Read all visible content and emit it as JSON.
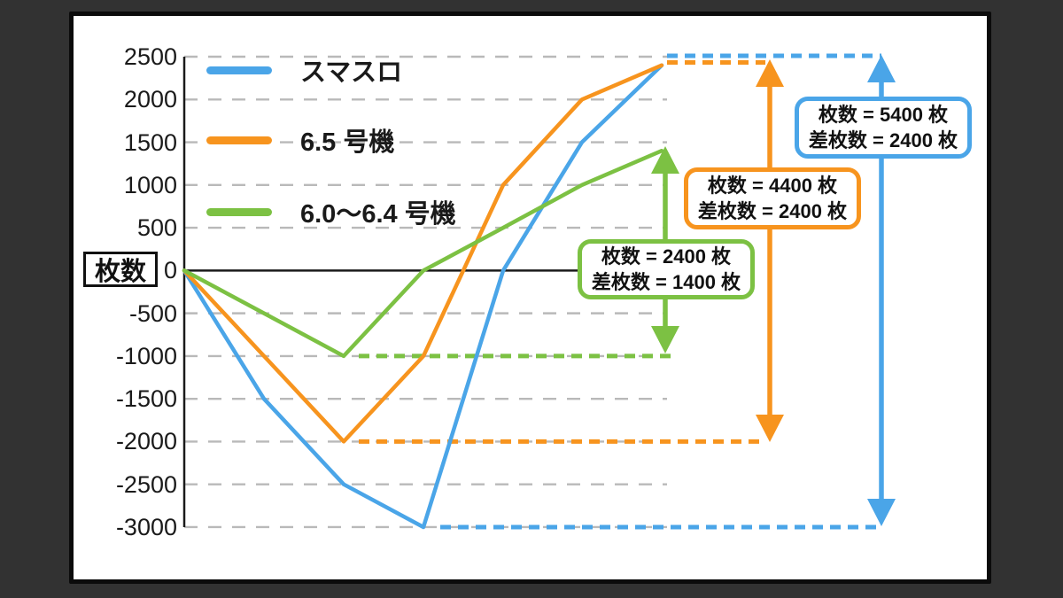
{
  "colors": {
    "blue": "#4aa5e8",
    "orange": "#f7941e",
    "green": "#7cc143",
    "grid": "#b9b9b9",
    "axis": "#1a1a1a",
    "panel_bg": "#ffffff",
    "page_bg": "#323232"
  },
  "chart_data": {
    "type": "line",
    "title": "",
    "ylabel": "枚数",
    "ylim": [
      -3000,
      2500
    ],
    "ytick_step": 500,
    "yticks": [
      2500,
      2000,
      1500,
      1000,
      500,
      0,
      -500,
      -1000,
      -1500,
      -2000,
      -2500,
      -3000
    ],
    "x_tick_labels": [],
    "grid": "horizontal dashed",
    "legend_position": "top-left inside plot",
    "series": [
      {
        "name": "スマスロ",
        "color": "#4aa5e8",
        "values": [
          0,
          -1500,
          -2500,
          -3000,
          0,
          1500,
          2400
        ]
      },
      {
        "name": "6.5 号機",
        "color": "#f7941e",
        "values": [
          0,
          -1000,
          -2000,
          -1000,
          1000,
          2000,
          2400
        ]
      },
      {
        "name": "6.0〜6.4 号機",
        "color": "#7cc143",
        "values": [
          0,
          -500,
          -1000,
          0,
          500,
          1000,
          1400
        ]
      }
    ],
    "reference_dashed_lines": [
      {
        "series": "スマスロ",
        "values": [
          2400,
          -3000
        ]
      },
      {
        "series": "6.5 号機",
        "values": [
          2400,
          -2000
        ]
      },
      {
        "series": "6.0〜6.4 号機",
        "values": [
          -1000
        ]
      }
    ]
  },
  "annotations": [
    {
      "id": "green",
      "series": "6.0〜6.4 号機",
      "color": "#7cc143",
      "line1": "枚数 = 2400 枚",
      "line2": "差枚数 = 1400 枚",
      "span_from": -1000,
      "span_to": 1400
    },
    {
      "id": "orange",
      "series": "6.5 号機",
      "color": "#f7941e",
      "line1": "枚数 = 4400 枚",
      "line2": "差枚数 = 2400 枚",
      "span_from": -2000,
      "span_to": 2400
    },
    {
      "id": "blue",
      "series": "スマスロ",
      "color": "#4aa5e8",
      "line1": "枚数 = 5400 枚",
      "line2": "差枚数 = 2400 枚",
      "span_from": -3000,
      "span_to": 2400
    }
  ]
}
